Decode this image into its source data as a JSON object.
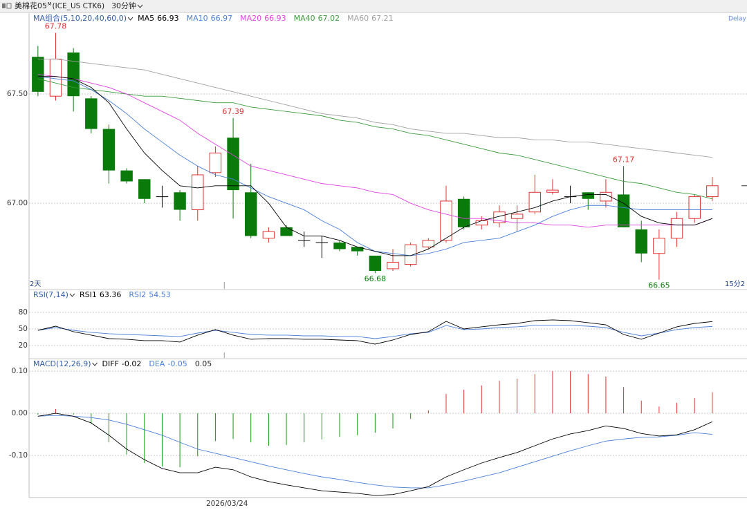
{
  "toolbar": {
    "symbol": "美棉花05",
    "mark": "M",
    "code": "(ICE_US CTK6)",
    "period": "30分钟"
  },
  "chart_data": [
    {
      "type": "candlestick",
      "indicator": "MA组合(5,10,20,40,60,0)",
      "status": "Delay",
      "span_left": "2天",
      "span_right": "15分2",
      "up_color": "#e03030",
      "down_color": "#0a7a0a",
      "doji_color": "#000000",
      "open": [
        67.67,
        67.49,
        67.69,
        67.48,
        67.34,
        67.15,
        67.11,
        67.03,
        67.05,
        66.97,
        67.14,
        67.3,
        67.05,
        66.84,
        66.89,
        66.83,
        66.82,
        66.82,
        66.8,
        66.76,
        66.7,
        66.72,
        66.8,
        66.83,
        67.02,
        66.9,
        66.91,
        66.93,
        66.96,
        67.05,
        67.03,
        67.05,
        67.01,
        67.04,
        66.88,
        66.77,
        66.84,
        66.93,
        67.03
      ],
      "high": [
        67.72,
        67.78,
        67.71,
        67.49,
        67.36,
        67.16,
        67.11,
        67.08,
        67.06,
        67.17,
        67.26,
        67.39,
        67.18,
        66.89,
        66.9,
        66.87,
        66.85,
        66.83,
        66.8,
        66.76,
        66.79,
        66.82,
        66.84,
        67.08,
        67.03,
        66.94,
        66.99,
        66.99,
        67.13,
        67.11,
        67.08,
        67.05,
        67.11,
        67.17,
        66.92,
        66.88,
        66.96,
        67.04,
        67.12
      ],
      "low": [
        67.49,
        67.47,
        67.42,
        67.32,
        67.09,
        67.09,
        67.0,
        66.98,
        66.92,
        66.92,
        67.12,
        66.93,
        66.84,
        66.82,
        66.85,
        66.8,
        66.75,
        66.78,
        66.76,
        66.68,
        66.69,
        66.71,
        66.79,
        66.82,
        66.88,
        66.88,
        66.89,
        66.87,
        66.95,
        67.04,
        67.0,
        66.97,
        66.98,
        66.89,
        66.73,
        66.65,
        66.8,
        66.91,
        67.01
      ],
      "close": [
        67.51,
        67.66,
        67.49,
        67.34,
        67.15,
        67.1,
        67.02,
        67.03,
        66.97,
        67.13,
        67.23,
        67.06,
        66.85,
        66.87,
        66.85,
        66.83,
        66.82,
        66.79,
        66.78,
        66.69,
        66.73,
        66.81,
        66.83,
        67.01,
        66.89,
        66.92,
        66.96,
        66.95,
        67.05,
        67.06,
        67.03,
        67.02,
        67.05,
        66.89,
        66.77,
        66.84,
        66.93,
        67.03,
        67.08
      ],
      "high_labels": [
        null,
        "67.78",
        null,
        null,
        null,
        null,
        null,
        null,
        null,
        null,
        null,
        "67.39",
        null,
        null,
        null,
        null,
        null,
        null,
        null,
        null,
        null,
        null,
        null,
        null,
        null,
        null,
        null,
        null,
        null,
        null,
        null,
        null,
        null,
        "67.17",
        null,
        null,
        null,
        null,
        null
      ],
      "low_labels": [
        null,
        null,
        null,
        null,
        null,
        null,
        null,
        null,
        null,
        null,
        null,
        null,
        null,
        null,
        null,
        null,
        null,
        null,
        null,
        "66.68",
        null,
        null,
        null,
        null,
        null,
        null,
        null,
        null,
        null,
        null,
        null,
        null,
        null,
        null,
        null,
        "66.65",
        null,
        null,
        null
      ],
      "series": [
        {
          "name": "MA5",
          "color": "#000000",
          "values": [
            67.58,
            67.58,
            67.57,
            67.53,
            67.46,
            67.34,
            67.23,
            67.15,
            67.08,
            67.07,
            67.08,
            67.08,
            67.08,
            67.0,
            66.89,
            66.85,
            66.85,
            66.83,
            66.8,
            66.78,
            66.76,
            66.76,
            66.79,
            66.84,
            66.89,
            66.92,
            66.94,
            66.96,
            66.98,
            67.01,
            67.03,
            67.04,
            67.04,
            67.0,
            66.94,
            66.91,
            66.9,
            66.9,
            66.93
          ]
        },
        {
          "name": "MA10",
          "color": "#4a7fd8",
          "values": [
            67.58,
            67.57,
            67.56,
            67.52,
            67.47,
            67.41,
            67.34,
            67.28,
            67.22,
            67.17,
            67.13,
            67.11,
            67.07,
            67.03,
            67.0,
            66.97,
            66.92,
            66.88,
            66.82,
            66.78,
            66.77,
            66.76,
            66.77,
            66.79,
            66.82,
            66.83,
            66.84,
            66.87,
            66.9,
            66.94,
            66.97,
            66.99,
            66.99,
            66.98,
            66.97,
            66.97,
            66.97,
            66.97,
            66.97
          ]
        },
        {
          "name": "MA20",
          "color": "#e040e0",
          "values": [
            67.59,
            67.58,
            67.57,
            67.55,
            67.53,
            67.5,
            67.46,
            67.42,
            67.38,
            67.32,
            67.27,
            67.22,
            67.17,
            67.15,
            67.13,
            67.11,
            67.09,
            67.08,
            67.07,
            67.05,
            67.04,
            67.0,
            66.97,
            66.95,
            66.93,
            66.93,
            66.92,
            66.91,
            66.91,
            66.9,
            66.9,
            66.89,
            66.9,
            66.9,
            66.9,
            66.9,
            66.9,
            66.9,
            66.93
          ]
        },
        {
          "name": "MA40",
          "color": "#3c9a3c",
          "values": [
            67.57,
            67.55,
            67.53,
            67.52,
            67.51,
            67.5,
            67.49,
            67.49,
            67.48,
            67.47,
            67.46,
            67.46,
            67.44,
            67.43,
            67.42,
            67.41,
            67.4,
            67.38,
            67.37,
            67.35,
            67.34,
            67.32,
            67.31,
            67.29,
            67.27,
            67.25,
            67.23,
            67.22,
            67.2,
            67.18,
            67.16,
            67.14,
            67.12,
            67.1,
            67.09,
            67.07,
            67.05,
            67.04,
            67.02
          ]
        },
        {
          "name": "MA60",
          "color": "#a0a0a0",
          "values": [
            67.66,
            67.66,
            67.65,
            67.64,
            67.63,
            67.62,
            67.61,
            67.59,
            67.57,
            67.55,
            67.53,
            67.51,
            67.49,
            67.47,
            67.45,
            67.43,
            67.41,
            67.4,
            67.39,
            67.37,
            67.36,
            67.34,
            67.33,
            67.32,
            67.32,
            67.31,
            67.3,
            67.3,
            67.29,
            67.29,
            67.28,
            67.28,
            67.27,
            67.26,
            67.25,
            67.24,
            67.23,
            67.22,
            67.21
          ]
        }
      ],
      "ylim": [
        66.608,
        67.867
      ],
      "yticks": [
        {
          "value": 67.5,
          "label": "67.50"
        },
        {
          "value": 67,
          "label": "67.00"
        }
      ],
      "grid": true
    },
    {
      "type": "line",
      "indicator": "RSI(7,14)",
      "series": [
        {
          "name": "RSI1",
          "color": "#000000",
          "values": [
            47.5,
            55,
            45,
            38.8,
            32.5,
            31.3,
            28.8,
            28.8,
            26.3,
            38.8,
            48.8,
            38.8,
            31.3,
            32.5,
            32.5,
            31.3,
            31.3,
            30,
            28.8,
            22.5,
            30,
            40,
            45,
            63.8,
            50,
            53.8,
            57.5,
            60,
            65,
            66.3,
            65,
            61.3,
            57.5,
            40,
            31.3,
            42.5,
            53.8,
            60,
            63.36
          ]
        },
        {
          "name": "RSI2",
          "color": "#4a7fd8",
          "values": [
            47.5,
            52.5,
            47.5,
            43.8,
            41.3,
            40,
            38.8,
            37.5,
            36.3,
            42.5,
            47.5,
            43.8,
            40,
            38.8,
            38.8,
            37.5,
            37.5,
            36.3,
            36.3,
            32.5,
            36.3,
            41.3,
            43.8,
            56.3,
            48.8,
            50,
            52.5,
            53.8,
            56.3,
            56.3,
            56.3,
            55,
            52.5,
            43.8,
            37.5,
            42.5,
            48.8,
            52.5,
            54.53
          ]
        }
      ],
      "ylim": [
        -2.5,
        120
      ],
      "yticks": [
        80,
        50,
        20
      ],
      "grid": true
    },
    {
      "type": "macd",
      "indicator": "MACD(12,26,9)",
      "histogram": {
        "up_color": "#e03030",
        "down_color": "#0a9a0a",
        "values": [
          -0.003,
          0.01,
          -0.003,
          -0.023,
          -0.069,
          -0.098,
          -0.118,
          -0.126,
          -0.128,
          -0.102,
          -0.066,
          -0.061,
          -0.069,
          -0.077,
          -0.075,
          -0.069,
          -0.062,
          -0.056,
          -0.052,
          -0.046,
          -0.036,
          -0.013,
          0.007,
          0.046,
          0.056,
          0.066,
          0.077,
          0.082,
          0.093,
          0.1,
          0.1,
          0.093,
          0.087,
          0.062,
          0.03,
          0.016,
          0.025,
          0.036,
          0.05
        ]
      },
      "series": [
        {
          "name": "DIFF",
          "color": "#000000",
          "values": [
            -0.007,
            0,
            -0.007,
            -0.023,
            -0.052,
            -0.085,
            -0.11,
            -0.131,
            -0.141,
            -0.141,
            -0.128,
            -0.134,
            -0.151,
            -0.162,
            -0.17,
            -0.177,
            -0.184,
            -0.187,
            -0.19,
            -0.195,
            -0.193,
            -0.184,
            -0.174,
            -0.151,
            -0.134,
            -0.118,
            -0.105,
            -0.093,
            -0.077,
            -0.061,
            -0.049,
            -0.041,
            -0.03,
            -0.036,
            -0.048,
            -0.054,
            -0.051,
            -0.039,
            -0.02
          ]
        },
        {
          "name": "DEA",
          "color": "#4a7fd8",
          "values": [
            -0.007,
            -0.005,
            -0.007,
            -0.01,
            -0.016,
            -0.026,
            -0.039,
            -0.052,
            -0.069,
            -0.085,
            -0.095,
            -0.105,
            -0.115,
            -0.125,
            -0.134,
            -0.143,
            -0.151,
            -0.157,
            -0.164,
            -0.17,
            -0.175,
            -0.177,
            -0.177,
            -0.17,
            -0.161,
            -0.151,
            -0.141,
            -0.128,
            -0.115,
            -0.102,
            -0.089,
            -0.077,
            -0.066,
            -0.061,
            -0.057,
            -0.056,
            -0.052,
            -0.046,
            -0.05
          ]
        }
      ],
      "categories": [
        null,
        null,
        null,
        null,
        null,
        null,
        null,
        null,
        null,
        null,
        null,
        "2026/03/24",
        null,
        null,
        null,
        null,
        null,
        null,
        null,
        null,
        null,
        null,
        null,
        null,
        null,
        null,
        null,
        null,
        null,
        null,
        null,
        null,
        null,
        null,
        null,
        null,
        null,
        null,
        null
      ],
      "ylim": [
        -0.2,
        0.128
      ],
      "yticks": [
        {
          "value": 0.1,
          "label": "0.10"
        },
        {
          "value": 0,
          "label": "0.00"
        },
        {
          "value": -0.1,
          "label": "-0.10"
        }
      ],
      "grid": true
    }
  ]
}
